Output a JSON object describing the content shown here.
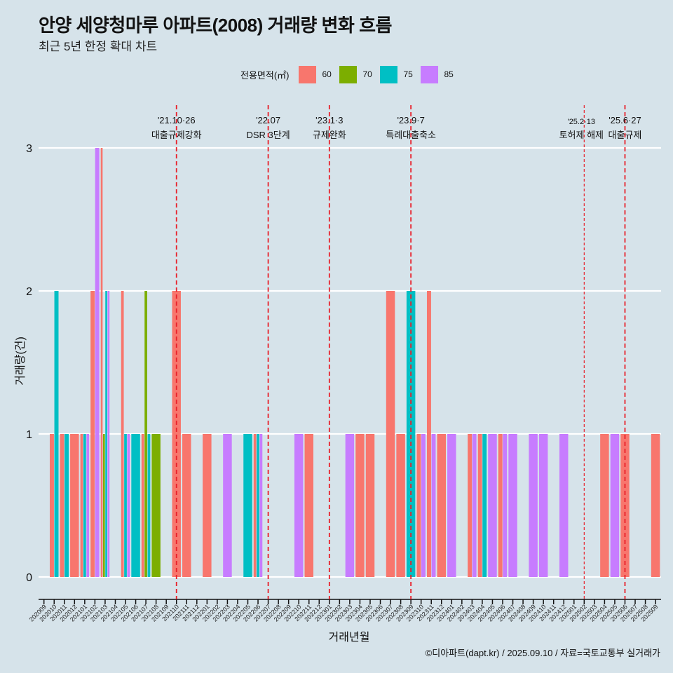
{
  "title": "안양 세양청마루 아파트(2008) 거래량 변화 흐름",
  "subtitle": "최근 5년 한정 확대 차트",
  "footer": "©디아파트(dapt.kr) / 2025.09.10 / 자료=국토교통부 실거래가",
  "chart_data": {
    "type": "bar",
    "title": "안양 세양청마루 아파트(2008) 거래량 변화 흐름",
    "xlabel": "거래년월",
    "ylabel": "거래량(건)",
    "ylim": [
      0,
      3
    ],
    "yticks": [
      0,
      1,
      2,
      3
    ],
    "legend": {
      "title": "전용면적(㎡)",
      "position": "top"
    },
    "series": [
      {
        "name": "60",
        "color": "#F8766D"
      },
      {
        "name": "70",
        "color": "#7CAE00"
      },
      {
        "name": "75",
        "color": "#00BFC4"
      },
      {
        "name": "85",
        "color": "#C77CFF"
      }
    ],
    "categories": [
      "202009",
      "202010",
      "202011",
      "202012",
      "202101",
      "202102",
      "202103",
      "202104",
      "202105",
      "202106",
      "202107",
      "202108",
      "202109",
      "202110",
      "202111",
      "202112",
      "202201",
      "202202",
      "202203",
      "202204",
      "202205",
      "202206",
      "202207",
      "202208",
      "202209",
      "202210",
      "202211",
      "202212",
      "202301",
      "202302",
      "202303",
      "202304",
      "202305",
      "202306",
      "202307",
      "202308",
      "202309",
      "202310",
      "202311",
      "202312",
      "202401",
      "202402",
      "202403",
      "202404",
      "202405",
      "202406",
      "202407",
      "202408",
      "202409",
      "202410",
      "202411",
      "202412",
      "202501",
      "202502",
      "202503",
      "202504",
      "202505",
      "202506",
      "202507",
      "202508",
      "202509"
    ],
    "data": [
      {
        "month": "202010",
        "60": 1,
        "75": 2
      },
      {
        "month": "202011",
        "60": 1,
        "75": 1
      },
      {
        "month": "202012",
        "60": 1
      },
      {
        "month": "202101",
        "60": 1,
        "75": 1,
        "85": 1
      },
      {
        "month": "202102",
        "60": 2,
        "85": 3
      },
      {
        "month": "202103",
        "60": 3,
        "70": 1,
        "75": 2,
        "85": 2
      },
      {
        "month": "202105",
        "60": 2,
        "75": 1,
        "85": 1
      },
      {
        "month": "202106",
        "75": 1
      },
      {
        "month": "202107",
        "60": 1,
        "70": 2,
        "75": 1
      },
      {
        "month": "202108",
        "70": 1
      },
      {
        "month": "202110",
        "60": 2
      },
      {
        "month": "202111",
        "60": 1
      },
      {
        "month": "202201",
        "60": 1
      },
      {
        "month": "202203",
        "85": 1
      },
      {
        "month": "202205",
        "75": 1
      },
      {
        "month": "202206",
        "60": 1,
        "75": 1,
        "85": 1
      },
      {
        "month": "202210",
        "85": 1
      },
      {
        "month": "202211",
        "60": 1
      },
      {
        "month": "202303",
        "85": 1
      },
      {
        "month": "202304",
        "60": 1
      },
      {
        "month": "202305",
        "60": 1
      },
      {
        "month": "202307",
        "60": 2
      },
      {
        "month": "202308",
        "60": 1
      },
      {
        "month": "202309",
        "75": 2
      },
      {
        "month": "202310",
        "60": 1,
        "85": 1
      },
      {
        "month": "202311",
        "60": 2,
        "85": 1
      },
      {
        "month": "202312",
        "60": 1
      },
      {
        "month": "202401",
        "85": 1
      },
      {
        "month": "202403",
        "60": 1,
        "85": 1
      },
      {
        "month": "202404",
        "60": 1,
        "75": 1
      },
      {
        "month": "202405",
        "85": 1
      },
      {
        "month": "202406",
        "60": 1,
        "85": 1
      },
      {
        "month": "202407",
        "85": 1
      },
      {
        "month": "202409",
        "85": 1
      },
      {
        "month": "202410",
        "85": 1
      },
      {
        "month": "202412",
        "85": 1
      },
      {
        "month": "202504",
        "60": 1
      },
      {
        "month": "202505",
        "85": 1
      },
      {
        "month": "202506",
        "60": 1
      },
      {
        "month": "202509",
        "60": 1
      }
    ],
    "annotations": [
      {
        "month": "202110",
        "date": "'21.10·26",
        "label": "대출규제강화",
        "style": "dashed"
      },
      {
        "month": "202207",
        "date": "'22.07",
        "label": "DSR 3단계",
        "style": "dashed"
      },
      {
        "month": "202301",
        "date": "'23.1·3",
        "label": "규제완화",
        "style": "dashed"
      },
      {
        "month": "202309",
        "date": "'23.9·7",
        "label": "특례대출축소",
        "style": "dashed"
      },
      {
        "month": "202502",
        "date": "'25.2·13",
        "label": "토허제 해제",
        "style": "dotted"
      },
      {
        "month": "202506",
        "date": "'25.6·27",
        "label": "대출규제",
        "style": "dashed"
      }
    ],
    "line_color": "#E8202A"
  }
}
